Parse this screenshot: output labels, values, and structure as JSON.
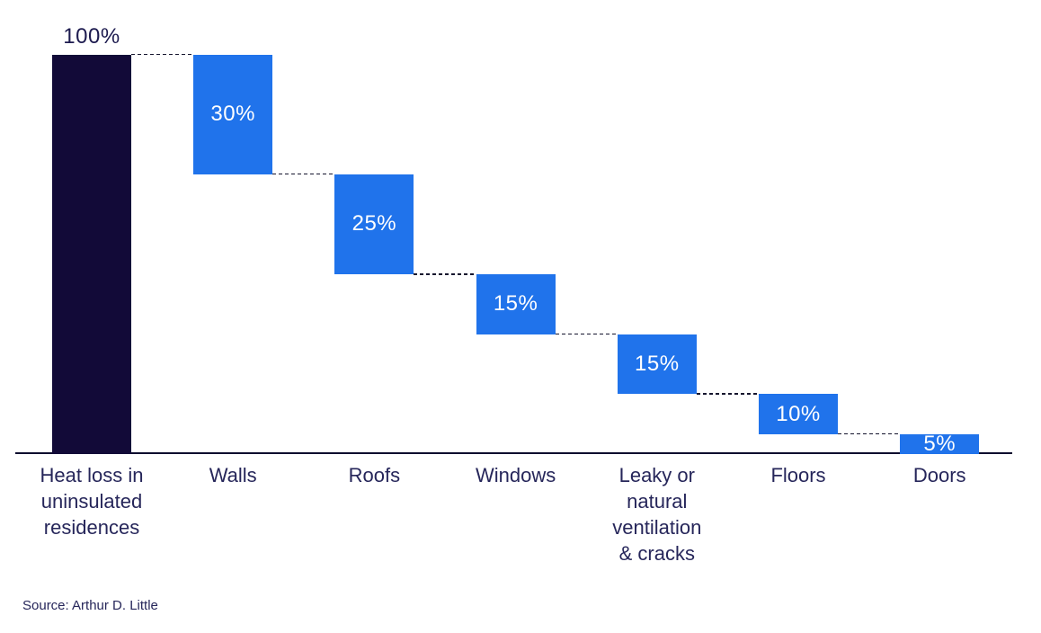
{
  "chart_data": {
    "type": "bar",
    "subtype": "waterfall",
    "title": "",
    "categories": [
      "Heat loss in uninsulated residences",
      "Walls",
      "Roofs",
      "Windows",
      "Leaky or natural ventilation & cracks",
      "Floors",
      "Doors"
    ],
    "category_labels": [
      "Heat loss in\nuninsulated\nresidences",
      "Walls",
      "Roofs",
      "Windows",
      "Leaky or\nnatural\nventilation\n& cracks",
      "Floors",
      "Doors"
    ],
    "values": [
      100,
      30,
      25,
      15,
      15,
      10,
      5
    ],
    "value_labels": [
      "100%",
      "30%",
      "25%",
      "15%",
      "15%",
      "10%",
      "5%"
    ],
    "bar_kinds": [
      "total",
      "delta",
      "delta",
      "delta",
      "delta",
      "delta",
      "delta"
    ],
    "unit": "%",
    "ylim": [
      0,
      100
    ],
    "grid": false,
    "legend": "none",
    "connector_style": "dashed",
    "colors": {
      "total_bar": "#120A38",
      "delta_bar": "#2073EB",
      "value_label_on_total": "#1D1B4F",
      "value_label_on_delta": "#FFFFFF",
      "axis_line": "#0D0D2E",
      "connector": "#15152E",
      "category_label": "#26265A",
      "background": "#FFFFFF"
    }
  },
  "footer": {
    "source": "Source: Arthur D. Little"
  }
}
